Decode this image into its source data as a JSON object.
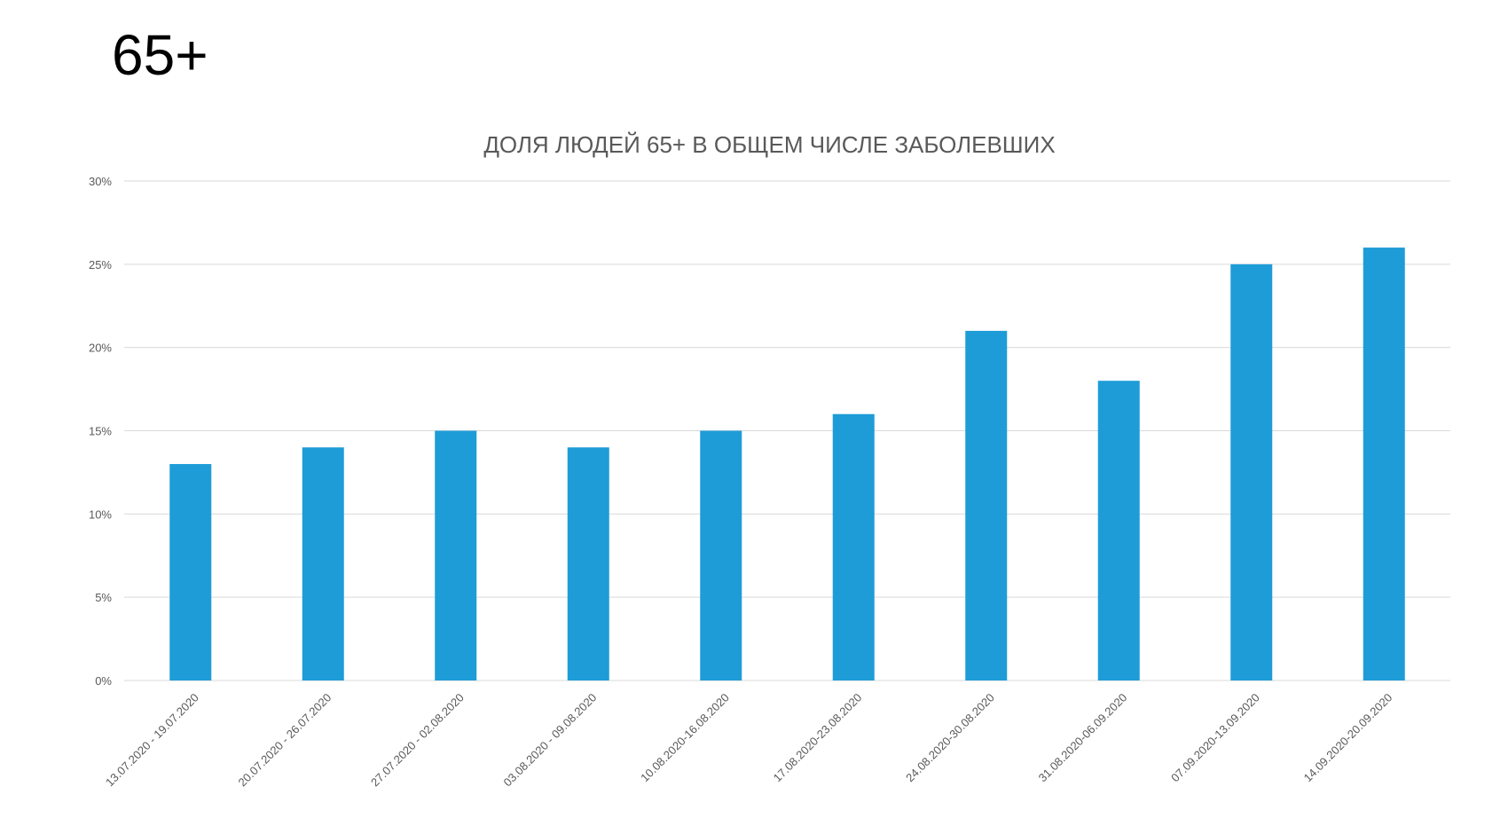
{
  "slide": {
    "title": "65+"
  },
  "chart_data": {
    "type": "bar",
    "title": "ДОЛЯ ЛЮДЕЙ 65+ В ОБЩЕМ ЧИСЛЕ ЗАБОЛЕВШИХ",
    "xlabel": "",
    "ylabel": "",
    "categories": [
      "13.07.2020 - 19.07.2020",
      "20.07.2020 - 26.07.2020",
      "27.07.2020 - 02.08.2020",
      "03.08.2020 - 09.08.2020",
      "10.08.2020-16.08.2020",
      "17.08.2020-23.08.2020",
      "24.08.2020-30.08.2020",
      "31.08.2020-06.09.2020",
      "07.09.2020-13.09.2020",
      "14.09.2020-20.09.2020"
    ],
    "values": [
      13,
      14,
      15,
      14,
      15,
      16,
      21,
      18,
      25,
      26
    ],
    "ylim": [
      0,
      30
    ],
    "yticks": [
      "0%",
      "5%",
      "10%",
      "15%",
      "20%",
      "25%",
      "30%"
    ],
    "grid": true,
    "legend": "none",
    "colors": {
      "bar": "#1E9CD7",
      "grid": "#D9D9D9",
      "text": "#595959"
    }
  }
}
